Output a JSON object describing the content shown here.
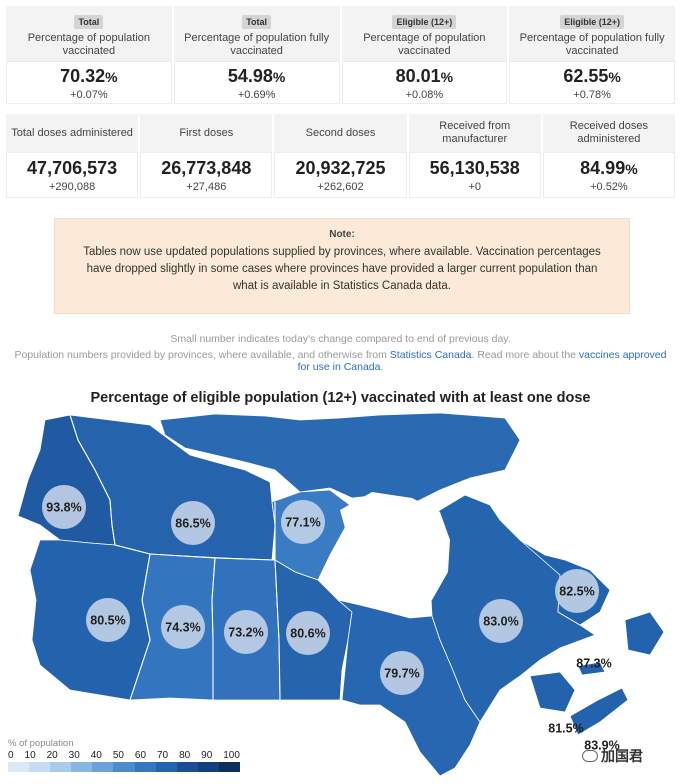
{
  "stats_row1": [
    {
      "badge": "Total",
      "label": "Percentage of population vaccinated",
      "value": "70.32",
      "unit": "%",
      "change": "+0.07%"
    },
    {
      "badge": "Total",
      "label": "Percentage of population fully vaccinated",
      "value": "54.98",
      "unit": "%",
      "change": "+0.69%"
    },
    {
      "badge": "Eligible (12+)",
      "label": "Percentage of population vaccinated",
      "value": "80.01",
      "unit": "%",
      "change": "+0.08%"
    },
    {
      "badge": "Eligible (12+)",
      "label": "Percentage of population fully vaccinated",
      "value": "62.55",
      "unit": "%",
      "change": "+0.78%"
    }
  ],
  "stats_row2": [
    {
      "label": "Total doses administered",
      "value": "47,706,573",
      "unit": "",
      "change": "+290,088"
    },
    {
      "label": "First doses",
      "value": "26,773,848",
      "unit": "",
      "change": "+27,486"
    },
    {
      "label": "Second doses",
      "value": "20,932,725",
      "unit": "",
      "change": "+262,602"
    },
    {
      "label": "Received from manufacturer",
      "value": "56,130,538",
      "unit": "",
      "change": "+0"
    },
    {
      "label": "Received doses administered",
      "value": "84.99",
      "unit": "%",
      "change": "+0.52%"
    }
  ],
  "note": {
    "title": "Note:",
    "text": "Tables now use updated populations supplied by provinces, where available. Vaccination percentages have dropped slightly in some cases where provinces have provided a larger current population than what is available in Statistics Canada data."
  },
  "info": {
    "line1": "Small number indicates today's change compared to end of previous day.",
    "line2_prefix": "Population numbers provided by provinces, where available, and otherwise from ",
    "link1": "Statistics Canada",
    "line2_mid": ". Read more about the ",
    "link2": "vaccines approved for use in Canada",
    "line2_suffix": "."
  },
  "map": {
    "title": "Percentage of eligible population (12+) vaccinated with at least one dose",
    "region_colors": {
      "yukon": "#1f5aa3",
      "nwt": "#2563ad",
      "nunavut": "#2a6ab3",
      "nunavut_mainland": "#3a7cc4",
      "bc": "#2362ad",
      "alberta": "#3475bf",
      "saskatchewan": "#3272bd",
      "manitoba": "#2664ae",
      "ontario": "#2766b0",
      "quebec": "#2565ae",
      "labrador": "#2362ac",
      "atlantic": "#2362ac"
    },
    "labels": [
      {
        "id": "yukon",
        "text": "93.8%",
        "bubble": true
      },
      {
        "id": "nwt",
        "text": "86.5%",
        "bubble": true
      },
      {
        "id": "nunavut",
        "text": "77.1%",
        "bubble": true
      },
      {
        "id": "bc",
        "text": "80.5%",
        "bubble": true
      },
      {
        "id": "alberta",
        "text": "74.3%",
        "bubble": true
      },
      {
        "id": "saskatchewan",
        "text": "73.2%",
        "bubble": true
      },
      {
        "id": "manitoba",
        "text": "80.6%",
        "bubble": true
      },
      {
        "id": "ontario",
        "text": "79.7%",
        "bubble": true
      },
      {
        "id": "quebec",
        "text": "83.0%",
        "bubble": true
      },
      {
        "id": "newfoundland",
        "text": "82.5%",
        "bubble": true
      },
      {
        "id": "pei",
        "text": "87.3%",
        "bubble": false
      },
      {
        "id": "new-brunswick",
        "text": "81.5%",
        "bubble": false
      },
      {
        "id": "nova-scotia",
        "text": "83.9%",
        "bubble": false
      }
    ]
  },
  "legend": {
    "label": "% of population",
    "ticks": [
      "0",
      "10",
      "20",
      "30",
      "40",
      "50",
      "60",
      "70",
      "80",
      "90",
      "100"
    ],
    "colors": [
      "#dbe9f7",
      "#c6dcf2",
      "#a9cbeb",
      "#8ab7e2",
      "#6aa1d6",
      "#4f8bcb",
      "#3776bf",
      "#2563ae",
      "#1a4f94",
      "#12407a",
      "#0c2f5c"
    ]
  },
  "watermark": "加国君"
}
